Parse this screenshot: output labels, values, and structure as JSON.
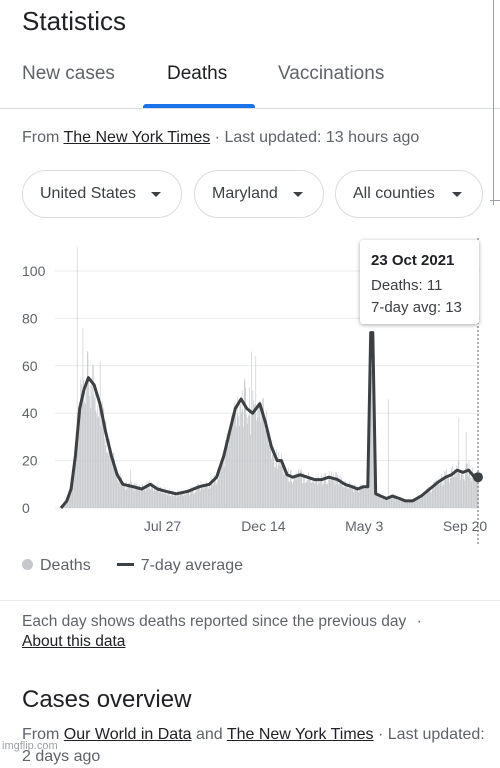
{
  "header": {
    "title": "Statistics"
  },
  "tabs": [
    {
      "label": "New cases",
      "active": false
    },
    {
      "label": "Deaths",
      "active": true
    },
    {
      "label": "Vaccinations",
      "active": false
    }
  ],
  "source": {
    "prefix": "From ",
    "link": "The New York Times",
    "updated": " · Last updated: 13 hours ago"
  },
  "filters": [
    {
      "label": "United States"
    },
    {
      "label": "Maryland"
    },
    {
      "label": "All counties"
    }
  ],
  "tooltip": {
    "date": "23 Oct 2021",
    "deaths": "Deaths: 11",
    "avg": "7-day avg: 13"
  },
  "legend": {
    "bars": "Deaths",
    "line": "7-day average"
  },
  "note": {
    "text": "Each day shows deaths reported since the previous day",
    "separator": "·",
    "link": "About this data"
  },
  "cases_overview": {
    "title": "Cases overview",
    "from": "From ",
    "link1": "Our World in Data",
    "and": " and ",
    "link2": "The New York Times",
    "suffix": " · Last updated: 2 days ago"
  },
  "watermark": "imgflip.com",
  "colors": {
    "accent": "#1a73e8",
    "bars": "#c5c7ca",
    "line": "#3c4043"
  },
  "chart_data": {
    "type": "bar",
    "overlay": "line",
    "yticks": [
      0,
      20,
      40,
      60,
      80,
      100
    ],
    "ylim": [
      0,
      110
    ],
    "xticks": [
      {
        "label": "Jul 27",
        "day": 141
      },
      {
        "label": "Dec 14",
        "day": 281
      },
      {
        "label": "May 3",
        "day": 421
      },
      {
        "label": "Sep 20",
        "day": 561
      }
    ],
    "start_date": "2020-03-08",
    "end_date": "2021-10-23",
    "series": [
      {
        "name": "7-day average",
        "points": [
          [
            0,
            0
          ],
          [
            8,
            3
          ],
          [
            14,
            8
          ],
          [
            20,
            22
          ],
          [
            26,
            42
          ],
          [
            32,
            50
          ],
          [
            38,
            55
          ],
          [
            46,
            52
          ],
          [
            54,
            44
          ],
          [
            62,
            32
          ],
          [
            70,
            22
          ],
          [
            78,
            14
          ],
          [
            86,
            10
          ],
          [
            100,
            9
          ],
          [
            112,
            8
          ],
          [
            124,
            10
          ],
          [
            134,
            8
          ],
          [
            146,
            7
          ],
          [
            160,
            6
          ],
          [
            176,
            7
          ],
          [
            192,
            9
          ],
          [
            206,
            10
          ],
          [
            216,
            13
          ],
          [
            226,
            22
          ],
          [
            234,
            32
          ],
          [
            242,
            42
          ],
          [
            250,
            46
          ],
          [
            258,
            42
          ],
          [
            266,
            40
          ],
          [
            276,
            44
          ],
          [
            284,
            36
          ],
          [
            292,
            26
          ],
          [
            300,
            20
          ],
          [
            306,
            20
          ],
          [
            314,
            14
          ],
          [
            322,
            13
          ],
          [
            332,
            14
          ],
          [
            342,
            13
          ],
          [
            352,
            12
          ],
          [
            362,
            12
          ],
          [
            372,
            13
          ],
          [
            384,
            12
          ],
          [
            394,
            10
          ],
          [
            404,
            9
          ],
          [
            412,
            8
          ],
          [
            420,
            9
          ],
          [
            426,
            9
          ],
          [
            430,
            74
          ],
          [
            433,
            74
          ],
          [
            437,
            6
          ],
          [
            444,
            5
          ],
          [
            452,
            4
          ],
          [
            460,
            5
          ],
          [
            470,
            4
          ],
          [
            478,
            3
          ],
          [
            488,
            3
          ],
          [
            500,
            5
          ],
          [
            512,
            8
          ],
          [
            524,
            11
          ],
          [
            534,
            13
          ],
          [
            542,
            14
          ],
          [
            550,
            16
          ],
          [
            558,
            15
          ],
          [
            566,
            16
          ],
          [
            574,
            13
          ],
          [
            579,
            13
          ]
        ]
      }
    ],
    "bar_peaks": [
      [
        22,
        110
      ],
      [
        30,
        76
      ],
      [
        54,
        62
      ],
      [
        96,
        16
      ],
      [
        264,
        66
      ],
      [
        270,
        64
      ],
      [
        454,
        46
      ],
      [
        552,
        38
      ],
      [
        562,
        32
      ]
    ],
    "highlight": {
      "date": "23 Oct 2021",
      "deaths": 11,
      "avg": 13
    }
  }
}
